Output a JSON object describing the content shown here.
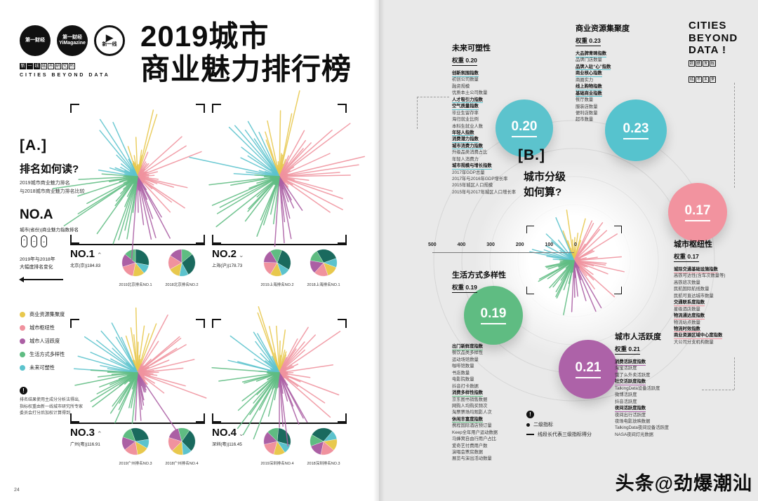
{
  "watermark": "头条@劲爆潮汕",
  "left_page": {
    "brand": {
      "logo_yicai": "第一财经",
      "logo_mag_top": "第一财经",
      "logo_mag_bottom": "YiMagazine",
      "logo_play": "新一线",
      "institute": "新一线城市研究所",
      "english": "CITIES BEYOND DATA"
    },
    "title_line1": "2019城市",
    "title_line2": "商业魅力排行榜",
    "section_a": {
      "marker": "[A.]",
      "heading": "排名如何读?",
      "intro": [
        "2019城市商业魅力排名",
        "与2018城市商业魅力排名比较"
      ],
      "no_a": "NO.A",
      "no_a_desc": "城市(省份)|商业魅力指数排名",
      "change_note": [
        "2019年与2018年",
        "大幅度排名变化"
      ],
      "legend": [
        {
          "label": "商业资源集聚度",
          "color": "#e8c84d"
        },
        {
          "label": "城市枢纽性",
          "color": "#f0929e"
        },
        {
          "label": "城市人活跃度",
          "color": "#ab5fa4"
        },
        {
          "label": "生活方式多样性",
          "color": "#5fbc82"
        },
        {
          "label": "未来可塑性",
          "color": "#5cc3cd"
        }
      ],
      "footnote": [
        "排名结果使用主成分分析法得出,",
        "指标权重由新一线城市研究所专家",
        "委员会打分后加权计算得到"
      ]
    },
    "page_number": "24",
    "rankings": [
      {
        "no": "NO.1",
        "trend": "⌃",
        "city": "北京(京)|184.83",
        "cap2019": "2019北京排名NO.1",
        "cap2018": "2018北京排名NO.2"
      },
      {
        "no": "NO.2",
        "trend": "⌄",
        "city": "上海(沪)|178.73",
        "cap2019": "2019上海排名NO.2",
        "cap2018": "2018上海排名NO.1"
      },
      {
        "no": "NO.3",
        "trend": "⌃",
        "city": "广州(粤)|116.91",
        "cap2019": "2019广州排名NO.3",
        "cap2018": "2018广州排名NO.4"
      },
      {
        "no": "NO.4",
        "trend": "⌄",
        "city": "深圳(粤)|116.45",
        "cap2019": "2019深圳排名NO.4",
        "cap2018": "2018深圳排名NO.3"
      }
    ]
  },
  "right_page": {
    "logo": {
      "line1": "CITIES",
      "line2": "BEYOND",
      "line3": "DATA !",
      "box1": "数据发掘",
      "box2": "城市未来"
    },
    "section_b": {
      "marker": "[B.]",
      "heading1": "城市分级",
      "heading2": "如何算?"
    },
    "axis_labels": [
      "500",
      "400",
      "300",
      "200",
      "100",
      "0"
    ],
    "legend_note": {
      "mark": "!",
      "dot_label": "二级指标",
      "line_label": "线段长代表三级指标得分"
    },
    "categories": [
      {
        "name": "未来可塑性",
        "weight_label": "权重 0.20",
        "weight": "0.20",
        "color": "#5cc3cd",
        "items": [
          "创新氛围指数",
          "初创公司数量",
          "融资规模",
          "优质本土公司数量",
          "人才吸引力指数",
          "空气质量指数",
          "毕业生留存率",
          "海归就业比例",
          "本科生就业人数",
          "年轻人指数",
          "消费潜力指数",
          "城市消费力指数",
          "升级品类消费占比",
          "年轻人消费力",
          "城市规模与增长指数",
          "2017年GDP总量",
          "2017年与2016年GDP增长率",
          "2015年城区人口规模",
          "2015年与2017年城区人口增长率"
        ]
      },
      {
        "name": "商业资源集聚度",
        "weight_label": "权重 0.23",
        "weight": "0.23",
        "color": "#56c3ce",
        "items": [
          "大品牌青睐指数",
          "品牌门店数量",
          "品牌入驻“心”指数",
          "商业核心指数",
          "商圈实力",
          "线上购物指数",
          "基础商业指数",
          "餐厅数量",
          "服装店数量",
          "便利店数量",
          "超市数量"
        ]
      },
      {
        "name": "城市枢纽性",
        "weight_label": "权重 0.17",
        "weight": "0.17",
        "color": "#f2939f",
        "items": [
          "城际交通基础设施指数",
          "高铁可达性(含车次数量等)",
          "高铁班次数量",
          "民航国际航线数量",
          "民航可直达城市数量",
          "交通联系度指数",
          "星级酒店数量",
          "物流通达度指数",
          "物流站点数量",
          "物流时效指数",
          "商业资源区域中心度指数",
          "大公司分支机构数量"
        ]
      },
      {
        "name": "生活方式多样性",
        "weight_label": "权重 0.19",
        "weight": "0.19",
        "color": "#5fbc82",
        "items": [
          "出门新鲜度指数",
          "餐饮品类多样性",
          "运动场馆数量",
          "咖啡馆数量",
          "书店数量",
          "电影院数量",
          "抖音打卡数据",
          "消费多样性指数",
          "京东图书销售数据",
          "网购人均购买频次",
          "淘票票场均观影人次",
          "休闲丰富度指数",
          "携程国际酒店预订量",
          "Keep全年用户运动数据",
          "马蜂窝自由行用户占比",
          "爱奇艺付费用户数",
          "演唱会票房数据",
          "展览与演出活动数量"
        ]
      },
      {
        "name": "城市人活跃度",
        "weight_label": "权重 0.21",
        "weight": "0.21",
        "color": "#ad62a8",
        "items": [
          "消费活跃度指数",
          "淘宝活跃度",
          "饿了么外卖活跃度",
          "社交活跃度指数",
          "TalkingData设备活跃度",
          "微博活跃度",
          "抖音活跃度",
          "夜间活跃度指数",
          "夜间出行活跃度",
          "夜场电影放映数据",
          "TalkingData夜间设备活跃度",
          "NASA夜间灯光数据"
        ]
      }
    ]
  },
  "charts": {
    "starburst_groups": [
      {
        "color": "#e8c84d",
        "a0": -112,
        "a1": -68,
        "n": 14
      },
      {
        "color": "#5cc3cd",
        "a0": -178,
        "a1": -112,
        "n": 16
      },
      {
        "color": "#f0929e",
        "a0": -68,
        "a1": 55,
        "n": 30
      },
      {
        "color": "#ab5fa4",
        "a0": 55,
        "a1": 95,
        "n": 12
      },
      {
        "color": "#5fbc82",
        "a0": 95,
        "a1": 185,
        "n": 26
      }
    ],
    "pie_segments": [
      {
        "color": "#1a6a5e",
        "value": 28
      },
      {
        "color": "#5cc3cd",
        "value": 11
      },
      {
        "color": "#e8c84d",
        "value": 14
      },
      {
        "color": "#f0929e",
        "value": 17
      },
      {
        "color": "#ab5fa4",
        "value": 16
      },
      {
        "color": "#5fbc82",
        "value": 14
      }
    ]
  }
}
